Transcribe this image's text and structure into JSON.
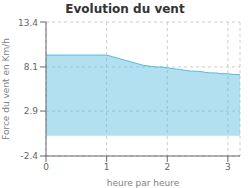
{
  "chart_data": {
    "type": "area",
    "title": "Evolution du vent",
    "xlabel": "heure par heure",
    "ylabel": "Force du vent en Km/h",
    "x": [
      0,
      0.1,
      0.2,
      0.3,
      0.4,
      0.5,
      0.6,
      0.7,
      0.8,
      0.9,
      1.0,
      1.1,
      1.2,
      1.3,
      1.4,
      1.5,
      1.6,
      1.7,
      1.8,
      1.9,
      2.0,
      2.1,
      2.2,
      2.3,
      2.4,
      2.5,
      2.6,
      2.7,
      2.8,
      2.9,
      3.0,
      3.1,
      3.2
    ],
    "values": [
      9.5,
      9.5,
      9.5,
      9.5,
      9.5,
      9.5,
      9.5,
      9.5,
      9.5,
      9.5,
      9.5,
      9.3,
      9.1,
      8.9,
      8.7,
      8.5,
      8.3,
      8.2,
      8.1,
      8.1,
      8.0,
      7.9,
      7.8,
      7.7,
      7.6,
      7.6,
      7.5,
      7.4,
      7.4,
      7.3,
      7.3,
      7.2,
      7.2
    ],
    "color": "#55bbdd",
    "xlim": [
      0,
      3.2
    ],
    "ylim": [
      -2.4,
      13.4
    ],
    "xticks": [
      0,
      1,
      2,
      3
    ],
    "yticks": [
      -2.4,
      2.9,
      8.1,
      13.4
    ],
    "grid": true
  }
}
